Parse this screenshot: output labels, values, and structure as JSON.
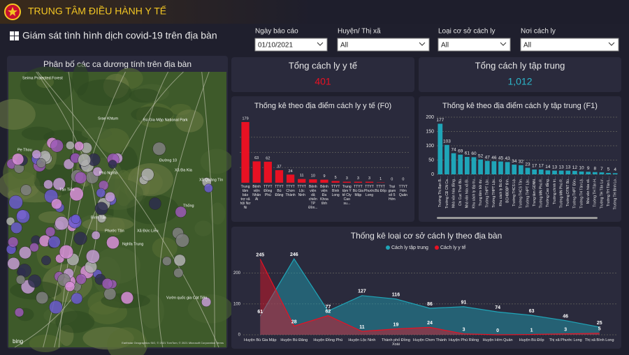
{
  "header": {
    "title": "TRUNG TÂM ĐIỀU HÀNH Y TẾ",
    "subtitle": "Giám sát tình hình dịch covid-19 trên địa bàn"
  },
  "filters": [
    {
      "label": "Ngày báo cáo",
      "value": "01/10/2021"
    },
    {
      "label": "Huyện/ Thị xã",
      "value": "All"
    },
    {
      "label": "Loại cơ sở cách ly",
      "value": "All"
    },
    {
      "label": "Nơi cách ly",
      "value": "All"
    }
  ],
  "map": {
    "title": "Phân bố các ca dương tính trên địa bàn",
    "places": [
      "Seima Protected Forest",
      "Srae Khtum",
      "Bù Gia Mập National Park",
      "Pe Thou",
      "Phú Nghĩa",
      "Đường 10",
      "Xã Đa Kia",
      "Tân Tiến",
      "Xã Quảng Tín",
      "Bình Tân",
      "Phước Tân",
      "Xã Đức Liễu",
      "Nghĩa Trung",
      "Thống",
      "Vườn quốc gia Cát Tiên"
    ],
    "brand": "bing",
    "attribution": "Earthstar Geographics SIO, © 2021 TomTom, © 2021 Microsoft Corporation Terms"
  },
  "kpis": [
    {
      "label": "Tổng cách ly y tế",
      "value": "401"
    },
    {
      "label": "Tổng cách ly tập trung",
      "value": "1,012"
    }
  ],
  "chart_f0": {
    "type": "bar",
    "title": "Thống kê theo địa điểm cách ly y tế (F0)",
    "color": "#e81123",
    "categories": [
      "Trung tâm bảo trợ xã hội Nơ Ni",
      "Bệnh viện Nhân Ái",
      "TTYT Đồng Phú",
      "TTYT Bù Đăng",
      "TTYT Chơn Thành",
      "TTYT Lộc Ninh",
      "Bệnh viện dã chiến TP Đồn...",
      "Bệnh viện Đa Khoa tỉnh",
      "TTYT Bình Long",
      "Trung tâm Y tế Cty Cao su...",
      "TTYT Bù Gia Mập",
      "TTYT Phước Long",
      "TTYT Bù Đốp",
      "Trại giam số 5 Hớn",
      "TTYT Hớn Quản"
    ],
    "values": [
      179,
      63,
      62,
      37,
      24,
      11,
      10,
      9,
      5,
      3,
      3,
      3,
      1,
      0,
      0
    ]
  },
  "chart_f1": {
    "type": "bar",
    "title": "Thống kê theo địa điểm cách ly tập trung (F1)",
    "color": "#1fa5b8",
    "ylim": [
      0,
      200
    ],
    "yticks": [
      0,
      50,
      100,
      150,
      200
    ],
    "categories": [
      "Trường Thị Bạn B...",
      "Trường CĐ CN Ca...",
      "Nhà văn hóa đồng...",
      "Chi Cục Thuế Bù...",
      "Nhà văn hóa xã Bì...",
      "Khu cách ly tập tru...",
      "Trung tâm bồi dư...",
      "Trường THPT Lộc...",
      "Trường THPT Lộc...",
      "Khu cách ly Bù Đ...",
      "BCHBĐBP tỉnh...",
      "Trường THCS Lộ...",
      "Trường THCS Tân...",
      "Trường THPT Lộc...",
      "Trung tâm GDNN...",
      "Trường MN Phú R...",
      "Trường Cao đẳng...",
      "Trường chính trị...",
      "Trường MN Phú R...",
      "Trường DTNT Bù...",
      "Trường THPT Đồn...",
      "Trường TH Tân Lậ...",
      "Nhà văn hóa xã...",
      "Trường TH Tân H...",
      "Trường TH Tân Lư...",
      "Trường TH Tân L...",
      "Trường TH Bình Lo..."
    ],
    "values": [
      177,
      103,
      74,
      69,
      61,
      60,
      52,
      47,
      46,
      45,
      43,
      34,
      32,
      23,
      17,
      17,
      14,
      13,
      13,
      13,
      12,
      10,
      9,
      8,
      7,
      5,
      4
    ]
  },
  "chart_area": {
    "type": "area",
    "title": "Thống kê loại cơ sở cách ly theo địa bàn",
    "ylim": [
      0,
      260
    ],
    "yticks": [
      0,
      100,
      200
    ],
    "categories": [
      "Huyện Bù Gia Mập",
      "Huyện Bù Đăng",
      "Huyện Đồng Phú",
      "Huyện Lộc Ninh",
      "Thành phố Đồng Xoài",
      "Huyện Chơn Thành",
      "Huyện Phú Riềng",
      "Huyện Hớn Quản",
      "Huyện Bù Đốp",
      "Thị xã Phước Long",
      "Thị xã Bình Long"
    ],
    "series": [
      {
        "name": "Cách ly tập trung",
        "color": "#1fa5b8",
        "values": [
          61,
          246,
          77,
          127,
          116,
          86,
          91,
          74,
          63,
          46,
          25
        ]
      },
      {
        "name": "Cách ly y tế",
        "color": "#e81123",
        "values": [
          245,
          28,
          62,
          11,
          19,
          24,
          3,
          0,
          1,
          3,
          5
        ]
      }
    ]
  }
}
